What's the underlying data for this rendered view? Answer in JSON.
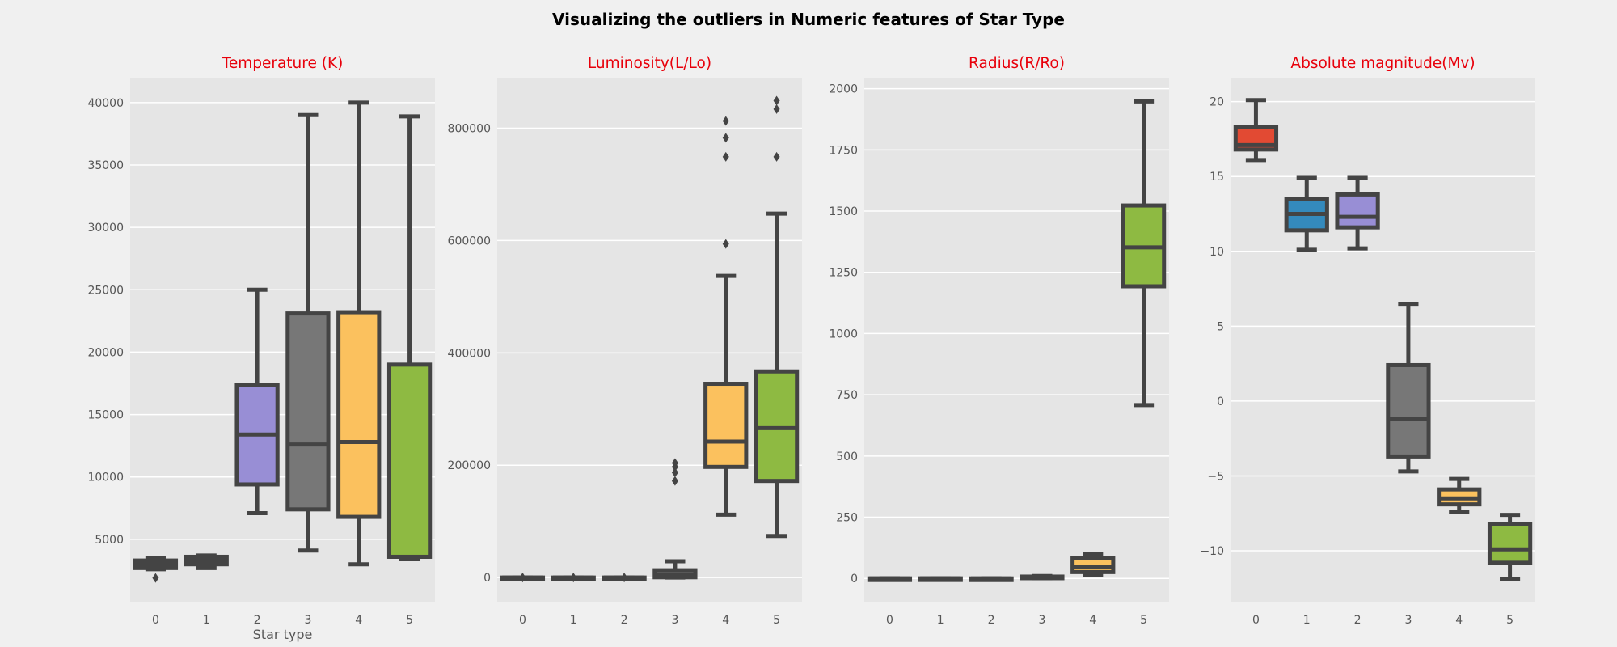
{
  "figure": {
    "title": "Visualizing the outliers in Numeric features of Star Type"
  },
  "chart_data": [
    {
      "type": "box",
      "title": "Temperature (K)",
      "xlabel": "Star type",
      "ylabel": "",
      "categories": [
        "0",
        "1",
        "2",
        "3",
        "4",
        "5"
      ],
      "ylim": [
        0,
        42000
      ],
      "yticks": [
        5000,
        10000,
        15000,
        20000,
        25000,
        30000,
        35000,
        40000
      ],
      "grid": true,
      "boxes": [
        {
          "category": "0",
          "whislo": 2600,
          "q1": 2700,
          "median": 3000,
          "q3": 3300,
          "whishi": 3500,
          "fliers": [
            1900
          ],
          "color": "#e24a33"
        },
        {
          "category": "1",
          "whislo": 2700,
          "q1": 3000,
          "median": 3300,
          "q3": 3600,
          "whishi": 3700,
          "fliers": [],
          "color": "#348abd"
        },
        {
          "category": "2",
          "whislo": 7100,
          "q1": 9400,
          "median": 13400,
          "q3": 17400,
          "whishi": 25000,
          "fliers": [],
          "color": "#988ed5"
        },
        {
          "category": "3",
          "whislo": 4100,
          "q1": 7400,
          "median": 12600,
          "q3": 23100,
          "whishi": 39000,
          "fliers": [],
          "color": "#777777"
        },
        {
          "category": "4",
          "whislo": 3000,
          "q1": 6800,
          "median": 12800,
          "q3": 23200,
          "whishi": 40000,
          "fliers": [],
          "color": "#fbc15e"
        },
        {
          "category": "5",
          "whislo": 3400,
          "q1": 3600,
          "median": 3600,
          "q3": 19000,
          "whishi": 38900,
          "fliers": [],
          "color": "#8eba42"
        }
      ]
    },
    {
      "type": "box",
      "title": "Luminosity(L/Lo)",
      "xlabel": "",
      "ylabel": "",
      "categories": [
        "0",
        "1",
        "2",
        "3",
        "4",
        "5"
      ],
      "ylim": [
        -43000,
        890000
      ],
      "yticks": [
        0,
        200000,
        400000,
        600000,
        800000
      ],
      "grid": true,
      "boxes": [
        {
          "category": "0",
          "whislo": 0,
          "q1": 0,
          "median": 0,
          "q3": 0.001,
          "whishi": 0.002,
          "fliers": [
            0.004
          ],
          "color": "#e24a33"
        },
        {
          "category": "1",
          "whislo": 0,
          "q1": 0,
          "median": 0.001,
          "q3": 0.002,
          "whishi": 0.004,
          "fliers": [
            0.01
          ],
          "color": "#348abd"
        },
        {
          "category": "2",
          "whislo": 0,
          "q1": 0,
          "median": 0.001,
          "q3": 0.002,
          "whishi": 0.004,
          "fliers": [
            0.01
          ],
          "color": "#988ed5"
        },
        {
          "category": "3",
          "whislo": 0,
          "q1": 500,
          "median": 4000,
          "q3": 13000,
          "whishi": 29000,
          "fliers": [
            172000,
            187000,
            197000,
            204000
          ],
          "color": "#777777"
        },
        {
          "category": "4",
          "whislo": 112000,
          "q1": 197000,
          "median": 242000,
          "q3": 345000,
          "whishi": 537000,
          "fliers": [
            594000,
            749000,
            783000,
            813000
          ],
          "color": "#fbc15e"
        },
        {
          "category": "5",
          "whislo": 74000,
          "q1": 172000,
          "median": 266000,
          "q3": 367000,
          "whishi": 648000,
          "fliers": [
            749000,
            834000,
            849000
          ],
          "color": "#8eba42"
        }
      ]
    },
    {
      "type": "box",
      "title": "Radius(R/Ro)",
      "xlabel": "",
      "ylabel": "",
      "categories": [
        "0",
        "1",
        "2",
        "3",
        "4",
        "5"
      ],
      "ylim": [
        -95,
        2045
      ],
      "yticks": [
        0,
        250,
        500,
        750,
        1000,
        1250,
        1500,
        1750,
        2000
      ],
      "grid": true,
      "boxes": [
        {
          "category": "0",
          "whislo": 0.08,
          "q1": 0.11,
          "median": 0.13,
          "q3": 0.16,
          "whishi": 0.19,
          "fliers": [],
          "color": "#e24a33"
        },
        {
          "category": "1",
          "whislo": 0.1,
          "q1": 0.15,
          "median": 0.21,
          "q3": 0.3,
          "whishi": 0.4,
          "fliers": [],
          "color": "#348abd"
        },
        {
          "category": "2",
          "whislo": 0.008,
          "q1": 0.01,
          "median": 0.012,
          "q3": 0.014,
          "whishi": 0.016,
          "fliers": [],
          "color": "#988ed5"
        },
        {
          "category": "3",
          "whislo": 0.8,
          "q1": 1.1,
          "median": 3.5,
          "q3": 7.5,
          "whishi": 10,
          "fliers": [],
          "color": "#777777"
        },
        {
          "category": "4",
          "whislo": 15,
          "q1": 26,
          "median": 47,
          "q3": 83,
          "whishi": 98,
          "fliers": [],
          "color": "#fbc15e"
        },
        {
          "category": "5",
          "whislo": 708,
          "q1": 1193,
          "median": 1352,
          "q3": 1523,
          "whishi": 1948,
          "fliers": [],
          "color": "#8eba42"
        }
      ]
    },
    {
      "type": "box",
      "title": "Absolute magnitude(Mv)",
      "xlabel": "",
      "ylabel": "",
      "categories": [
        "0",
        "1",
        "2",
        "3",
        "4",
        "5"
      ],
      "ylim": [
        -13.4,
        21.6
      ],
      "yticks": [
        -10,
        -5,
        0,
        5,
        10,
        15,
        20
      ],
      "grid": true,
      "boxes": [
        {
          "category": "0",
          "whislo": 16.1,
          "q1": 16.8,
          "median": 17.1,
          "q3": 18.3,
          "whishi": 20.1,
          "fliers": [],
          "color": "#e24a33"
        },
        {
          "category": "1",
          "whislo": 10.1,
          "q1": 11.4,
          "median": 12.5,
          "q3": 13.5,
          "whishi": 14.9,
          "fliers": [],
          "color": "#348abd"
        },
        {
          "category": "2",
          "whislo": 10.2,
          "q1": 11.6,
          "median": 12.3,
          "q3": 13.8,
          "whishi": 14.9,
          "fliers": [],
          "color": "#988ed5"
        },
        {
          "category": "3",
          "whislo": -4.7,
          "q1": -3.7,
          "median": -1.2,
          "q3": 2.4,
          "whishi": 6.5,
          "fliers": [],
          "color": "#777777"
        },
        {
          "category": "4",
          "whislo": -7.4,
          "q1": -6.9,
          "median": -6.5,
          "q3": -5.9,
          "whishi": -5.2,
          "fliers": [],
          "color": "#fbc15e"
        },
        {
          "category": "5",
          "whislo": -11.9,
          "q1": -10.8,
          "median": -9.9,
          "q3": -8.2,
          "whishi": -7.6,
          "fliers": [],
          "color": "#8eba42"
        }
      ]
    }
  ]
}
